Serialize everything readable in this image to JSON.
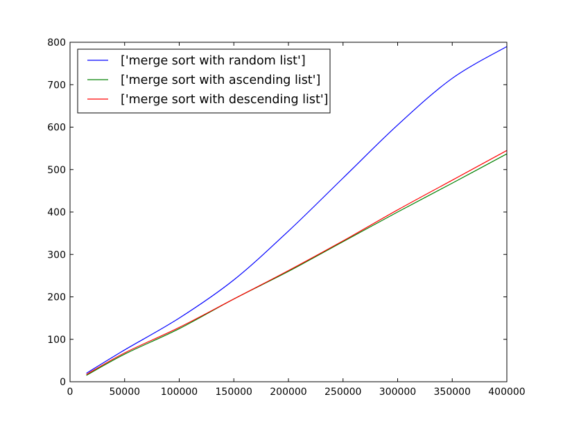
{
  "chart_data": {
    "type": "line",
    "title": "",
    "xlabel": "",
    "ylabel": "",
    "xlim": [
      0,
      400000
    ],
    "ylim": [
      0,
      800
    ],
    "xticks": [
      0,
      50000,
      100000,
      150000,
      200000,
      250000,
      300000,
      350000,
      400000
    ],
    "yticks": [
      0,
      100,
      200,
      300,
      400,
      500,
      600,
      700,
      800
    ],
    "xtick_labels": [
      "0",
      "50000",
      "100000",
      "150000",
      "200000",
      "250000",
      "300000",
      "350000",
      "400000"
    ],
    "ytick_labels": [
      "0",
      "100",
      "200",
      "300",
      "400",
      "500",
      "600",
      "700",
      "800"
    ],
    "grid": false,
    "legend_position": "top-left",
    "series": [
      {
        "name": "['merge sort with random list']",
        "color": "#0000ff",
        "x": [
          15000,
          50000,
          100000,
          150000,
          200000,
          250000,
          300000,
          350000,
          400000
        ],
        "y": [
          20,
          75,
          150,
          240,
          355,
          480,
          605,
          715,
          790
        ]
      },
      {
        "name": "['merge sort with ascending list']",
        "color": "#008000",
        "x": [
          15000,
          50000,
          100000,
          150000,
          200000,
          250000,
          300000,
          350000,
          400000
        ],
        "y": [
          15,
          65,
          125,
          195,
          260,
          330,
          400,
          468,
          537
        ]
      },
      {
        "name": "['merge sort with descending list']",
        "color": "#ff0000",
        "x": [
          15000,
          50000,
          100000,
          150000,
          200000,
          250000,
          300000,
          350000,
          400000
        ],
        "y": [
          17,
          68,
          128,
          195,
          262,
          332,
          405,
          475,
          545
        ]
      }
    ]
  }
}
